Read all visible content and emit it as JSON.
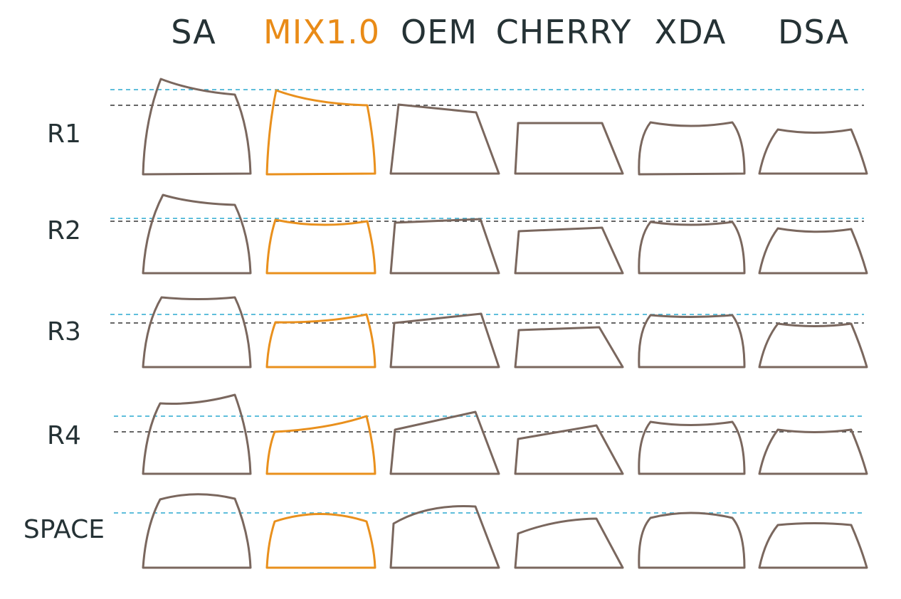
{
  "profiles": [
    {
      "name": "SA",
      "highlight": false
    },
    {
      "name": "MIX1.0",
      "highlight": true
    },
    {
      "name": "OEM",
      "highlight": false
    },
    {
      "name": "CHERRY",
      "highlight": false
    },
    {
      "name": "XDA",
      "highlight": false
    },
    {
      "name": "DSA",
      "highlight": false
    }
  ],
  "rows": [
    {
      "label": "R1"
    },
    {
      "label": "R2"
    },
    {
      "label": "R3"
    },
    {
      "label": "R4"
    },
    {
      "label": "SPACE"
    }
  ],
  "colors": {
    "outline": "#7a675e",
    "highlight": "#e9901d",
    "reference_blue": "#2aa8cf",
    "reference_black": "#333333",
    "text": "#253235"
  }
}
